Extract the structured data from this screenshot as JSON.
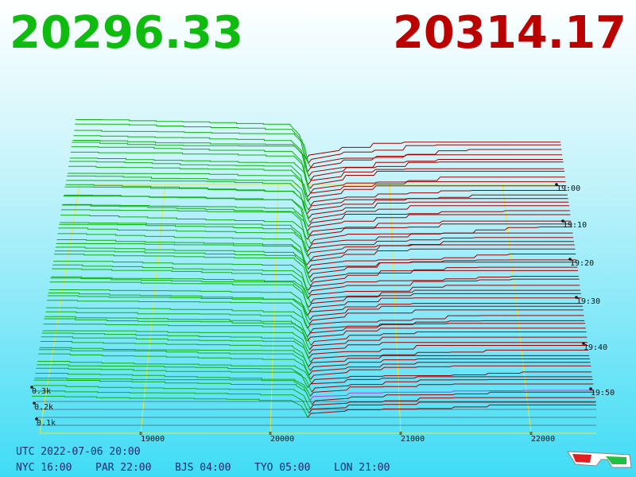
{
  "header": {
    "bid": "20296.33",
    "ask": "20314.17"
  },
  "price_axis": [
    "19000",
    "20000",
    "21000",
    "22000"
  ],
  "time_axis": [
    "19:00",
    "19:10",
    "19:20",
    "19:30",
    "19:40",
    "19:50"
  ],
  "depth_axis": [
    "0.3k",
    "0.2k",
    "0.1k"
  ],
  "footer": {
    "utc": "UTC 2022-07-06 20:00",
    "zones": [
      "NYC 16:00",
      "PAR 22:00",
      "BJS 04:00",
      "TYO 05:00",
      "LON 21:00"
    ]
  }
}
